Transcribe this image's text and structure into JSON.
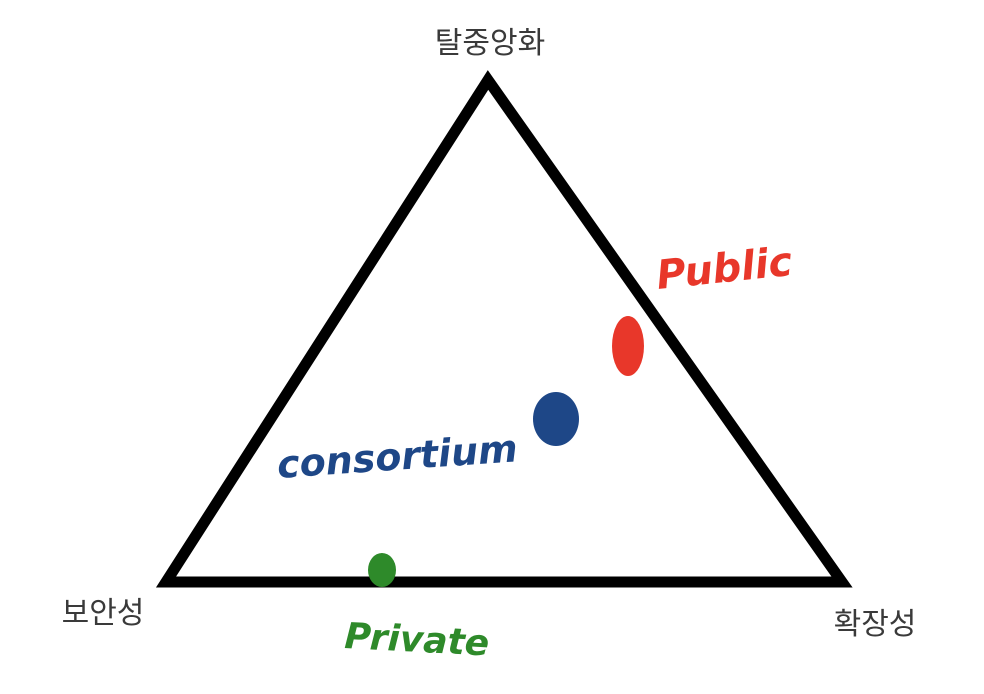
{
  "vertices": {
    "top": "탈중앙화",
    "bottom_left": "보안성",
    "bottom_right": "확장성"
  },
  "points": {
    "public": {
      "label": "Public",
      "color": "#e8372a"
    },
    "consortium": {
      "label": "consortium",
      "color": "#1e4787"
    },
    "private": {
      "label": "Private",
      "color": "#2e8a2a"
    }
  },
  "colors": {
    "triangle": "#000000",
    "background": "#ffffff"
  }
}
